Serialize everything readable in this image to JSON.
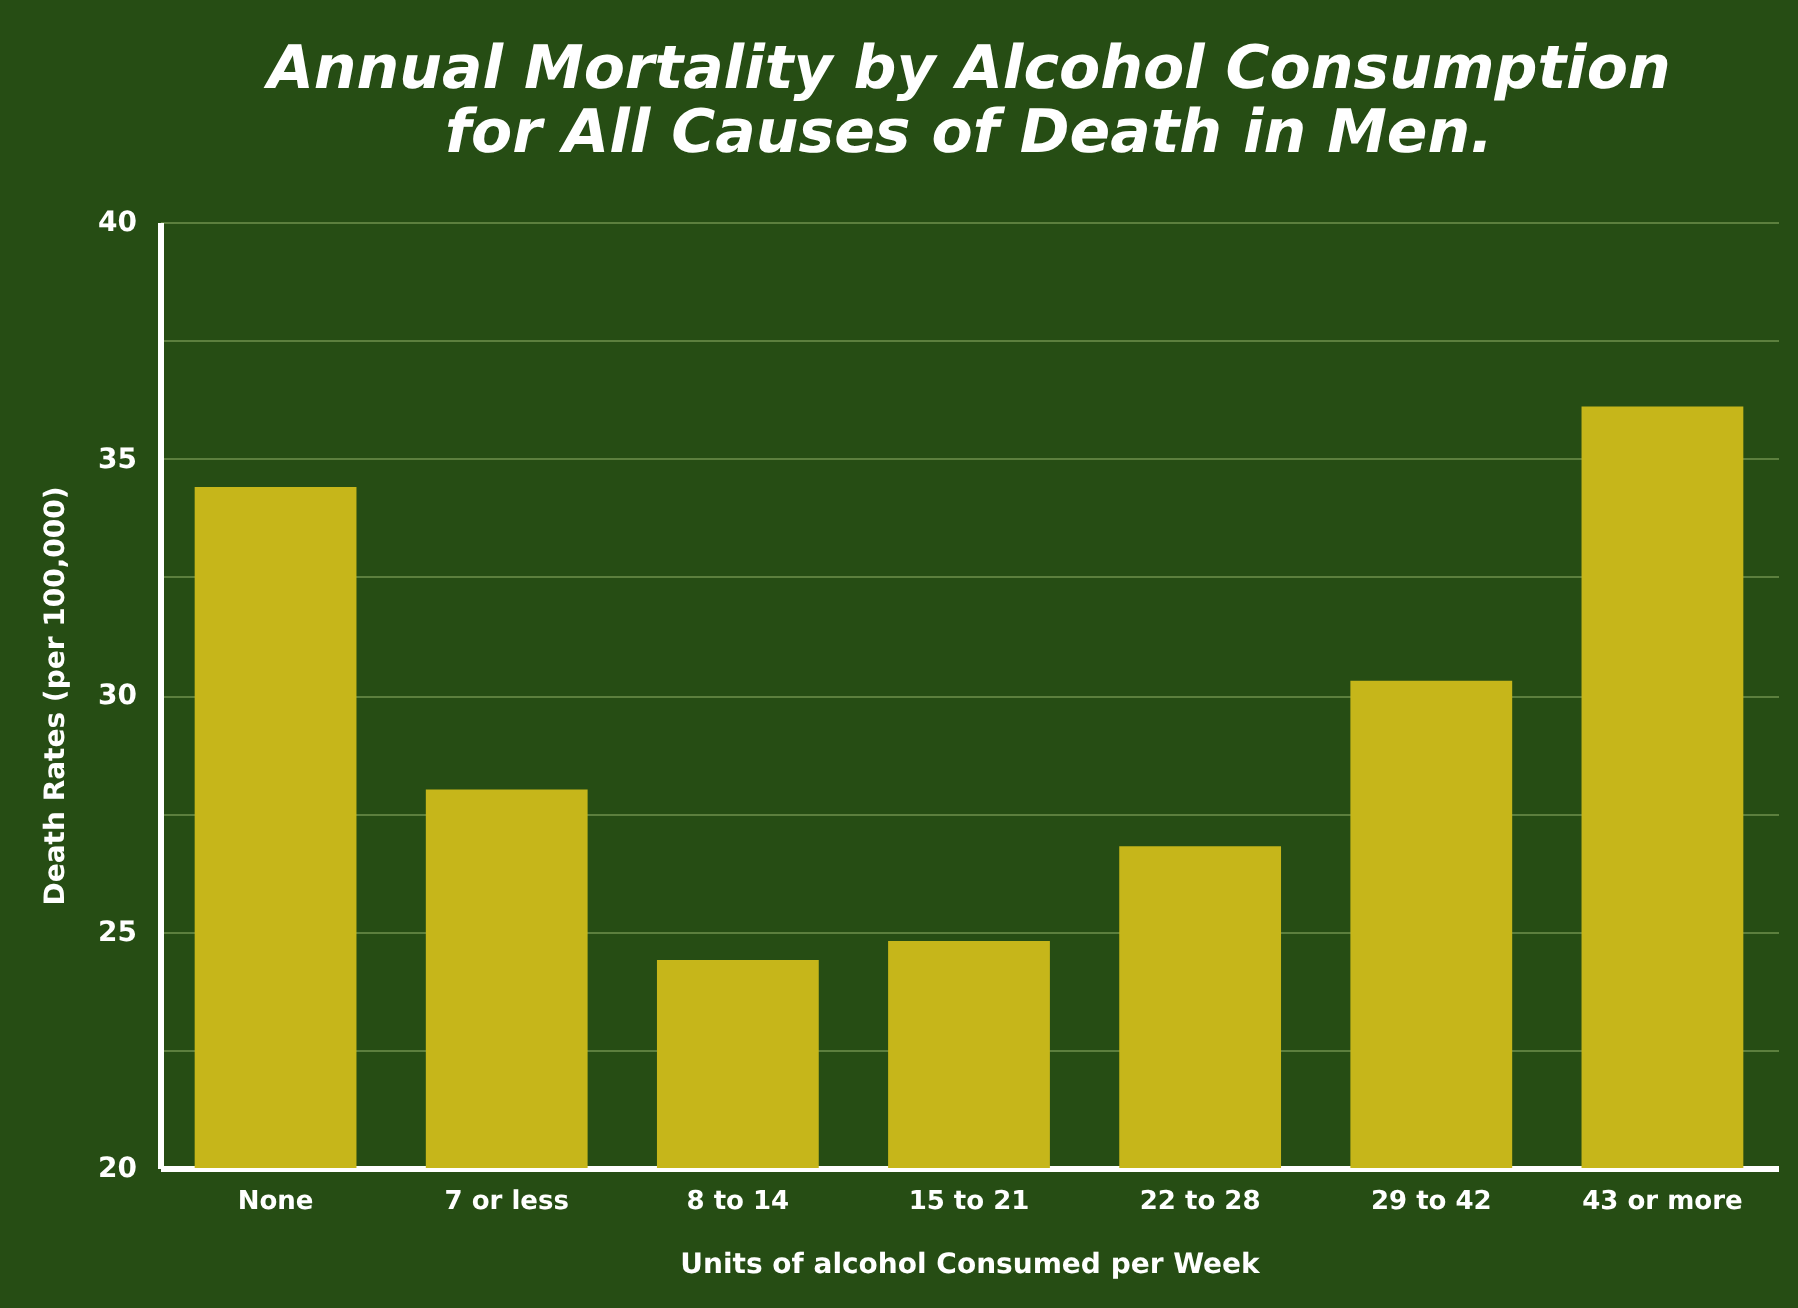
{
  "chart_data": {
    "type": "bar",
    "title": "Annual Mortality by Alcohol Consumption\nfor All Causes of Death in Men.",
    "xlabel": "Units of alcohol Consumed per Week",
    "ylabel": "Death Rates (per 100,000)",
    "categories": [
      "None",
      "7 or less",
      "8 to 14",
      "15 to 21",
      "22 to 28",
      "29 to 42",
      "43 or more"
    ],
    "values": [
      34.4,
      28.0,
      24.4,
      24.8,
      26.8,
      30.3,
      36.1
    ],
    "color": "#c6b61a",
    "ylim": [
      20,
      40
    ],
    "yticks": [
      20,
      {
        "value": 22.5,
        "label": null
      },
      25,
      {
        "value": 27.5,
        "label": null
      },
      30,
      {
        "value": 32.5,
        "label": null
      },
      35,
      {
        "value": 37.5,
        "label": null
      },
      40
    ],
    "grid": "y"
  }
}
